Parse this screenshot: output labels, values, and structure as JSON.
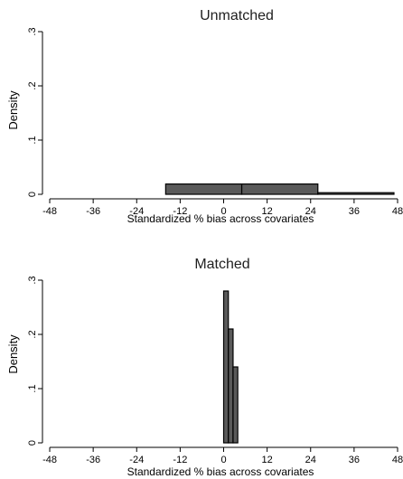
{
  "chart_data": [
    {
      "type": "bar",
      "title": "Unmatched",
      "xlabel": "Standardized % bias across covariates",
      "ylabel": "Density",
      "xlim": [
        -50,
        48
      ],
      "ylim": [
        0,
        0.3
      ],
      "xticks": [
        "-48",
        "-36",
        "-24",
        "-12",
        "0",
        "12",
        "24",
        "36",
        "48"
      ],
      "xtick_values": [
        -48,
        -36,
        -24,
        -12,
        0,
        12,
        24,
        36,
        48
      ],
      "yticks": [
        "0",
        ".1",
        ".2",
        ".3"
      ],
      "ytick_values": [
        0,
        0.1,
        0.2,
        0.3
      ],
      "bins": [
        {
          "x0": -16,
          "x1": 5,
          "density": 0.019
        },
        {
          "x0": 5,
          "x1": 26,
          "density": 0.019
        },
        {
          "x0": 26,
          "x1": 47,
          "density": 0.003
        }
      ],
      "bar_color": "#5a5a5a",
      "grid": false
    },
    {
      "type": "bar",
      "title": "Matched",
      "xlabel": "Standardized % bias across covariates",
      "ylabel": "Density",
      "xlim": [
        -50,
        48
      ],
      "ylim": [
        0,
        0.3
      ],
      "xticks": [
        "-48",
        "-36",
        "-24",
        "-12",
        "0",
        "12",
        "24",
        "36",
        "48"
      ],
      "xtick_values": [
        -48,
        -36,
        -24,
        -12,
        0,
        12,
        24,
        36,
        48
      ],
      "yticks": [
        "0",
        ".1",
        ".2",
        ".3"
      ],
      "ytick_values": [
        0,
        0.1,
        0.2,
        0.3
      ],
      "bins": [
        {
          "x0": 0,
          "x1": 1.3,
          "density": 0.28
        },
        {
          "x0": 1.3,
          "x1": 2.6,
          "density": 0.21
        },
        {
          "x0": 2.6,
          "x1": 3.9,
          "density": 0.14
        }
      ],
      "bar_color": "#5a5a5a",
      "grid": false
    }
  ]
}
